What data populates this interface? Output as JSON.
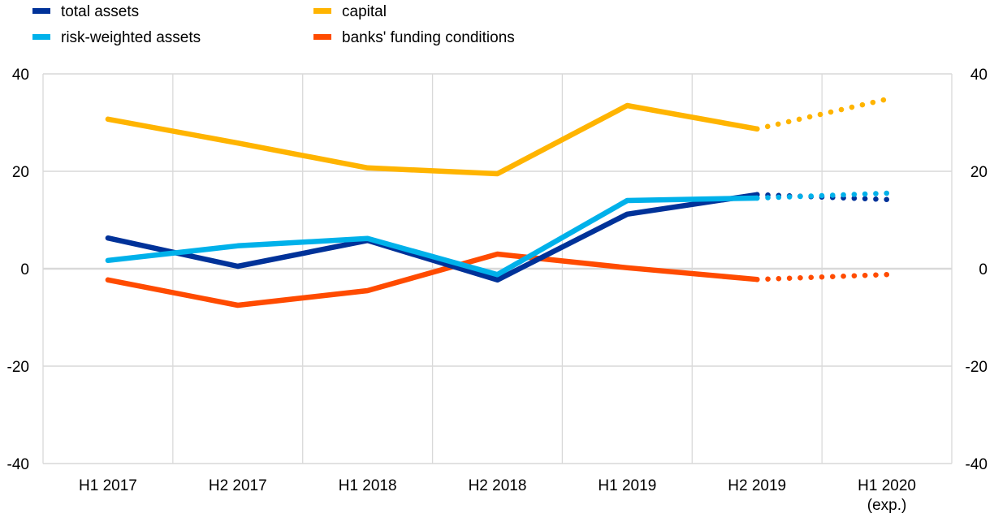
{
  "chart_data": {
    "type": "line",
    "title": "",
    "xlabel": "",
    "ylabel": "",
    "categories": [
      "H1 2017",
      "H2 2017",
      "H1 2018",
      "H2 2018",
      "H1 2019",
      "H2 2019",
      "H1 2020"
    ],
    "category_sublabels": [
      "",
      "",
      "",
      "",
      "",
      "",
      "(exp.)"
    ],
    "ylim": [
      -40,
      40
    ],
    "yticks": [
      -40,
      -20,
      0,
      20,
      40
    ],
    "ytick_labels": [
      "-40",
      "-20",
      "0",
      "20",
      "40"
    ],
    "y2ticks_mirror": true,
    "grid": true,
    "legend_position": "top-left",
    "expected_from_index": 5,
    "series": [
      {
        "name": "total assets",
        "color": "#003299",
        "values": [
          6.3,
          0.5,
          5.8,
          -2.3,
          11.2,
          15.2,
          14.2
        ]
      },
      {
        "name": "risk-weighted assets",
        "color": "#00B1EA",
        "values": [
          1.7,
          4.7,
          6.2,
          -1.2,
          14.0,
          14.5,
          15.5
        ]
      },
      {
        "name": "capital",
        "color": "#FFB400",
        "values": [
          30.7,
          25.8,
          20.7,
          19.5,
          33.5,
          28.7,
          34.8
        ]
      },
      {
        "name": "banks' funding conditions",
        "color": "#FF4B00",
        "values": [
          -2.3,
          -7.5,
          -4.5,
          3.0,
          0.2,
          -2.2,
          -1.2
        ]
      }
    ]
  }
}
